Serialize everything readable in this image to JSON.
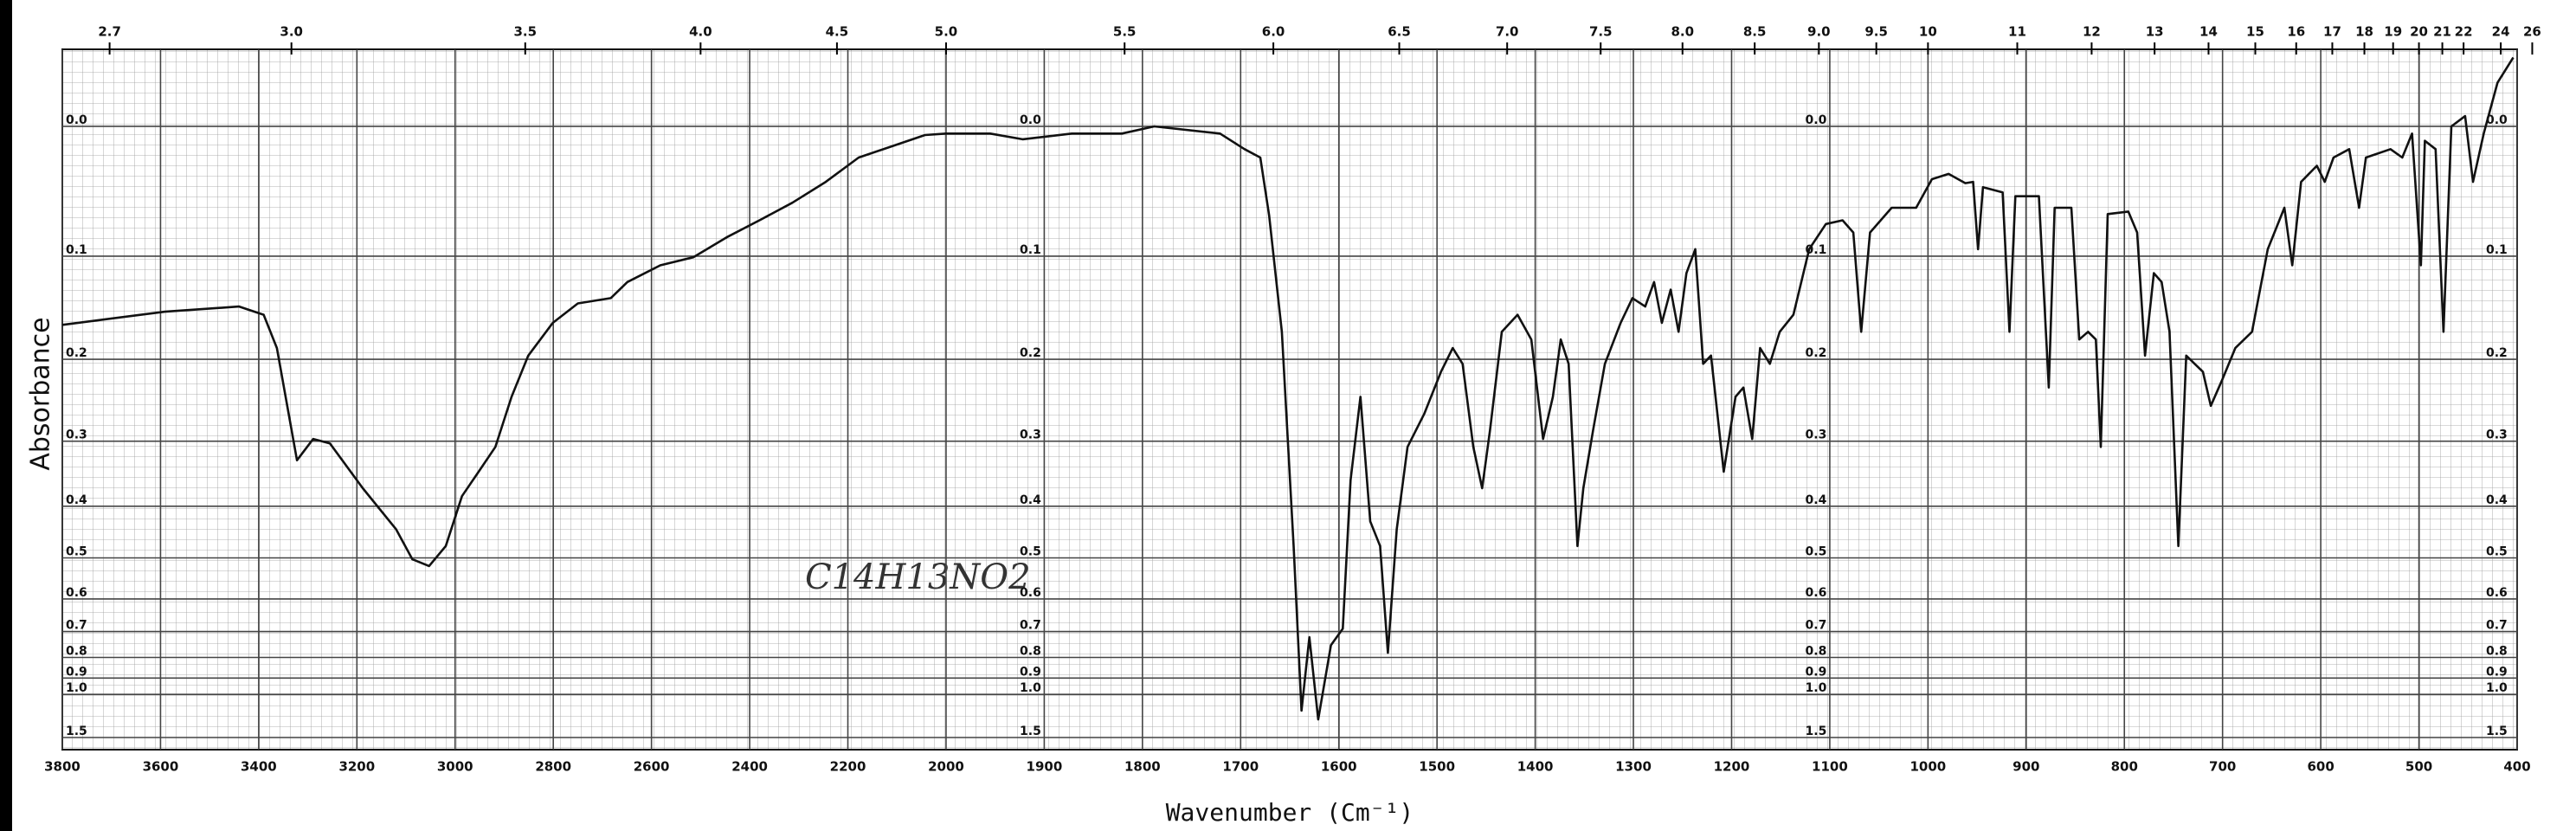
{
  "chart_data": {
    "type": "line",
    "y_label": "Absorbance",
    "x_label": "Wavenumber (Cm⁻¹)",
    "annotation": "C14H13NO2",
    "color": "#111111",
    "grid": true,
    "yscale": "transmittance",
    "x_scale_break": 2000,
    "x_scale_factor": 2,
    "x2_scale": "reciprocal",
    "xlim": [
      3800,
      400
    ],
    "ylim": [
      -0.05,
      1.5
    ],
    "xticks": [
      3800,
      3600,
      3400,
      3200,
      3000,
      2800,
      2600,
      2400,
      2200,
      2000,
      1900,
      1800,
      1700,
      1600,
      1500,
      1400,
      1300,
      1200,
      1100,
      1000,
      900,
      800,
      700,
      600,
      500,
      400
    ],
    "yticks": [
      {
        "value": 0,
        "label": "0.0"
      },
      0.1,
      0.2,
      0.3,
      0.4,
      0.5,
      0.6,
      0.7,
      0.8,
      0.9,
      {
        "value": 1,
        "label": "1.0"
      },
      1.5
    ],
    "x2ticks": [
      2.7,
      {
        "value": 3,
        "label": "3.0"
      },
      3.5,
      {
        "value": 4,
        "label": "4.0"
      },
      4.5,
      {
        "value": 5,
        "label": "5.0"
      },
      5.5,
      {
        "value": 6,
        "label": "6.0"
      },
      6.5,
      {
        "value": 7,
        "label": "7.0"
      },
      7.5,
      {
        "value": 8,
        "label": "8.0"
      },
      8.5,
      {
        "value": 9,
        "label": "9.0"
      },
      9.5,
      10,
      11,
      12,
      13,
      14,
      15,
      16,
      17,
      18,
      19,
      20,
      21,
      22,
      24,
      26
    ],
    "x": [
      3800,
      3591,
      3440,
      3390,
      3363,
      3339,
      3322,
      3289,
      3255,
      3188,
      3120,
      3087,
      3053,
      3019,
      2986,
      2952,
      2918,
      2885,
      2851,
      2801,
      2750,
      2683,
      2649,
      2582,
      2515,
      2447,
      2380,
      2313,
      2245,
      2178,
      2111,
      2043,
      2000,
      1955,
      1922,
      1872,
      1821,
      1788,
      1721,
      1696,
      1680,
      1671,
      1658,
      1646,
      1638,
      1630,
      1621,
      1608,
      1596,
      1588,
      1578,
      1568,
      1558,
      1550,
      1541,
      1530,
      1513,
      1496,
      1484,
      1474,
      1463,
      1454,
      1446,
      1434,
      1418,
      1404,
      1392,
      1382,
      1374,
      1366,
      1357,
      1351,
      1341,
      1329,
      1313,
      1301,
      1288,
      1279,
      1271,
      1262,
      1254,
      1246,
      1237,
      1229,
      1221,
      1208,
      1196,
      1188,
      1179,
      1171,
      1161,
      1151,
      1137,
      1121,
      1104,
      1087,
      1076,
      1068,
      1059,
      1037,
      1012,
      996,
      979,
      962,
      954,
      949,
      944,
      924,
      917,
      911,
      887,
      877,
      871,
      854,
      846,
      837,
      829,
      824,
      817,
      796,
      787,
      779,
      770,
      762,
      754,
      745,
      737,
      720,
      712,
      700,
      687,
      670,
      654,
      637,
      629,
      620,
      604,
      596,
      587,
      571,
      561,
      554,
      529,
      517,
      507,
      498,
      494,
      483,
      475,
      467,
      453,
      445,
      434,
      420,
      404
    ],
    "values": [
      0.164,
      0.151,
      0.146,
      0.154,
      0.188,
      0.264,
      0.327,
      0.297,
      0.303,
      0.37,
      0.442,
      0.503,
      0.518,
      0.475,
      0.383,
      0.344,
      0.308,
      0.243,
      0.196,
      0.162,
      0.143,
      0.138,
      0.123,
      0.108,
      0.101,
      0.084,
      0.07,
      0.056,
      0.04,
      0.022,
      0.014,
      0.006,
      0.005,
      0.005,
      0.009,
      0.005,
      0.005,
      0,
      0.005,
      0.016,
      0.022,
      0.066,
      0.171,
      0.475,
      1.13,
      0.72,
      1.22,
      0.75,
      0.69,
      0.357,
      0.243,
      0.427,
      0.475,
      0.78,
      0.442,
      0.308,
      0.264,
      0.214,
      0.188,
      0.205,
      0.308,
      0.37,
      0.285,
      0.171,
      0.154,
      0.179,
      0.297,
      0.243,
      0.179,
      0.205,
      0.475,
      0.37,
      0.285,
      0.205,
      0.162,
      0.138,
      0.146,
      0.123,
      0.162,
      0.13,
      0.171,
      0.115,
      0.094,
      0.205,
      0.196,
      0.344,
      0.243,
      0.232,
      0.297,
      0.188,
      0.205,
      0.171,
      0.154,
      0.094,
      0.073,
      0.07,
      0.08,
      0.171,
      0.08,
      0.06,
      0.06,
      0.038,
      0.034,
      0.041,
      0.04,
      0.094,
      0.044,
      0.048,
      0.171,
      0.051,
      0.051,
      0.232,
      0.06,
      0.06,
      0.179,
      0.171,
      0.179,
      0.308,
      0.065,
      0.063,
      0.08,
      0.196,
      0.115,
      0.123,
      0.171,
      0.475,
      0.196,
      0.214,
      0.254,
      0.222,
      0.188,
      0.171,
      0.094,
      0.06,
      0.108,
      0.04,
      0.028,
      0.04,
      0.022,
      0.016,
      0.06,
      0.022,
      0.016,
      0.022,
      0.005,
      0.108,
      0.01,
      0.016,
      0.171,
      0,
      -0.007,
      0.04,
      0.005,
      -0.029,
      -0.045
    ]
  }
}
